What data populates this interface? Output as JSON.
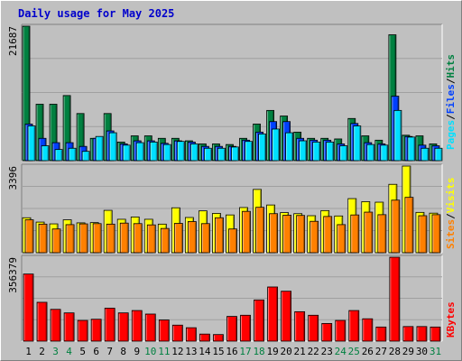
{
  "title": "Daily usage for May 2025",
  "colors": {
    "hits": "#008040",
    "files": "#0040ff",
    "pages": "#00e0ff",
    "visits": "#ffff00",
    "sites": "#ff8000",
    "kbytes": "#ff0000",
    "weekend_day": "#008040",
    "weekday": "#000000",
    "panel_bg": "#c0c0c0"
  },
  "chart_data": [
    {
      "type": "bar",
      "panel": "usage",
      "ymax_label": "21687",
      "ylim": [
        0,
        21687
      ],
      "legend": [
        "Pages",
        "/",
        "Files",
        "/",
        "Hits"
      ],
      "categories": [
        "1",
        "2",
        "3",
        "4",
        "5",
        "6",
        "7",
        "8",
        "9",
        "10",
        "11",
        "12",
        "13",
        "14",
        "15",
        "16",
        "17",
        "18",
        "19",
        "20",
        "21",
        "22",
        "23",
        "24",
        "25",
        "26",
        "27",
        "28",
        "29",
        "30",
        "31"
      ],
      "weekend_days": [
        "3",
        "4",
        "10",
        "11",
        "17",
        "18",
        "24",
        "25",
        "31"
      ],
      "series": [
        {
          "name": "Hits",
          "values": [
            21687,
            9100,
            9100,
            10500,
            7600,
            3600,
            7600,
            3000,
            4000,
            4000,
            3600,
            3600,
            3200,
            2700,
            2700,
            2600,
            3600,
            5900,
            8100,
            7200,
            4600,
            3600,
            3600,
            3500,
            6800,
            4000,
            3300,
            20300,
            4100,
            4000,
            2700
          ]
        },
        {
          "name": "Files",
          "values": [
            5900,
            3600,
            2900,
            2900,
            2300,
            3600,
            4800,
            2700,
            3200,
            3200,
            2800,
            3200,
            3000,
            2300,
            2300,
            2300,
            3300,
            4600,
            6300,
            6300,
            3600,
            3300,
            3300,
            2700,
            6000,
            2900,
            2700,
            10400,
            3900,
            2500,
            2400
          ]
        },
        {
          "name": "Pages",
          "values": [
            5600,
            2400,
            1800,
            2000,
            1500,
            3900,
            4500,
            2500,
            2900,
            3000,
            2600,
            3100,
            2700,
            2000,
            2000,
            2200,
            3100,
            4300,
            5100,
            4500,
            3200,
            3000,
            3000,
            2400,
            5600,
            2600,
            2500,
            8100,
            3800,
            2000,
            2000
          ]
        }
      ]
    },
    {
      "type": "bar",
      "panel": "visits",
      "ymax_label": "3396",
      "ylim": [
        0,
        3396
      ],
      "legend": [
        "Sites",
        "/",
        "Visits"
      ],
      "categories": [
        "1",
        "2",
        "3",
        "4",
        "5",
        "6",
        "7",
        "8",
        "9",
        "10",
        "11",
        "12",
        "13",
        "14",
        "15",
        "16",
        "17",
        "18",
        "19",
        "20",
        "21",
        "22",
        "23",
        "24",
        "25",
        "26",
        "27",
        "28",
        "29",
        "30",
        "31"
      ],
      "series": [
        {
          "name": "Visits",
          "values": [
            1370,
            1200,
            1130,
            1290,
            1170,
            1180,
            1660,
            1310,
            1400,
            1310,
            1120,
            1760,
            1380,
            1640,
            1540,
            1480,
            1770,
            2480,
            1870,
            1570,
            1530,
            1450,
            1650,
            1440,
            2120,
            2000,
            1980,
            2680,
            3396,
            1580,
            1550
          ]
        },
        {
          "name": "Sites",
          "values": [
            1290,
            1120,
            930,
            1100,
            1130,
            1140,
            1120,
            1160,
            1140,
            1090,
            950,
            1150,
            1220,
            1140,
            1370,
            930,
            1620,
            1780,
            1530,
            1470,
            1460,
            1230,
            1420,
            1100,
            1480,
            1590,
            1490,
            2060,
            2170,
            1450,
            1490
          ]
        }
      ]
    },
    {
      "type": "bar",
      "panel": "kbytes",
      "ymax_label": "356379",
      "ylim": [
        0,
        356379
      ],
      "legend": [
        "KBytes"
      ],
      "categories": [
        "1",
        "2",
        "3",
        "4",
        "5",
        "6",
        "7",
        "8",
        "9",
        "10",
        "11",
        "12",
        "13",
        "14",
        "15",
        "16",
        "17",
        "18",
        "19",
        "20",
        "21",
        "22",
        "23",
        "24",
        "25",
        "26",
        "27",
        "28",
        "29",
        "30",
        "31"
      ],
      "series": [
        {
          "name": "KBytes",
          "values": [
            285000,
            165000,
            135000,
            120000,
            88000,
            93000,
            140000,
            120000,
            130000,
            115000,
            90000,
            68000,
            57000,
            30000,
            28000,
            105000,
            110000,
            175000,
            230000,
            212000,
            125000,
            110000,
            75000,
            88000,
            130000,
            95000,
            60000,
            356379,
            62000,
            62000,
            60000
          ]
        }
      ]
    }
  ]
}
